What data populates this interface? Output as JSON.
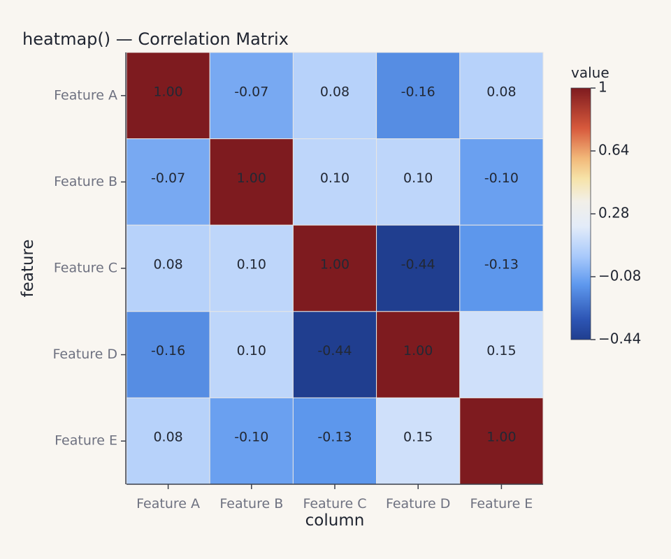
{
  "chart_data": {
    "type": "heatmap",
    "title": "heatmap() — Correlation Matrix",
    "xlabel": "column",
    "ylabel": "feature",
    "x_categories": [
      "Feature A",
      "Feature B",
      "Feature C",
      "Feature D",
      "Feature E"
    ],
    "y_categories": [
      "Feature A",
      "Feature B",
      "Feature C",
      "Feature D",
      "Feature E"
    ],
    "values": [
      [
        1.0,
        -0.07,
        0.08,
        -0.16,
        0.08
      ],
      [
        -0.07,
        1.0,
        0.1,
        0.1,
        -0.1
      ],
      [
        0.08,
        0.1,
        1.0,
        -0.44,
        -0.13
      ],
      [
        -0.16,
        0.1,
        -0.44,
        1.0,
        0.15
      ],
      [
        0.08,
        -0.1,
        -0.13,
        0.15,
        1.0
      ]
    ],
    "cell_labels": [
      [
        "1.00",
        "-0.07",
        "0.08",
        "-0.16",
        "0.08"
      ],
      [
        "-0.07",
        "1.00",
        "0.10",
        "0.10",
        "-0.10"
      ],
      [
        "0.08",
        "0.10",
        "1.00",
        "-0.44",
        "-0.13"
      ],
      [
        "-0.16",
        "0.10",
        "-0.44",
        "1.00",
        "0.15"
      ],
      [
        "0.08",
        "-0.10",
        "-0.13",
        "0.15",
        "1.00"
      ]
    ],
    "colorbar": {
      "title": "value",
      "range": [
        -0.44,
        1
      ],
      "tick_values": [
        1,
        0.64,
        0.28,
        -0.08,
        -0.44
      ],
      "tick_labels": [
        "1",
        "0.64",
        "0.28",
        "−0.08",
        "−0.44"
      ],
      "placement": "right"
    },
    "colorscale": [
      [
        0.0,
        "#203e8f"
      ],
      [
        0.08,
        "#2d55b4"
      ],
      [
        0.22,
        "#5f99ee"
      ],
      [
        0.33,
        "#a8c9fb"
      ],
      [
        0.45,
        "#e3ecf9"
      ],
      [
        0.55,
        "#f2efe8"
      ],
      [
        0.64,
        "#f6e3a8"
      ],
      [
        0.72,
        "#f2b97a"
      ],
      [
        0.84,
        "#d7593c"
      ],
      [
        1.0,
        "#7e1b1f"
      ]
    ],
    "grid": false
  }
}
